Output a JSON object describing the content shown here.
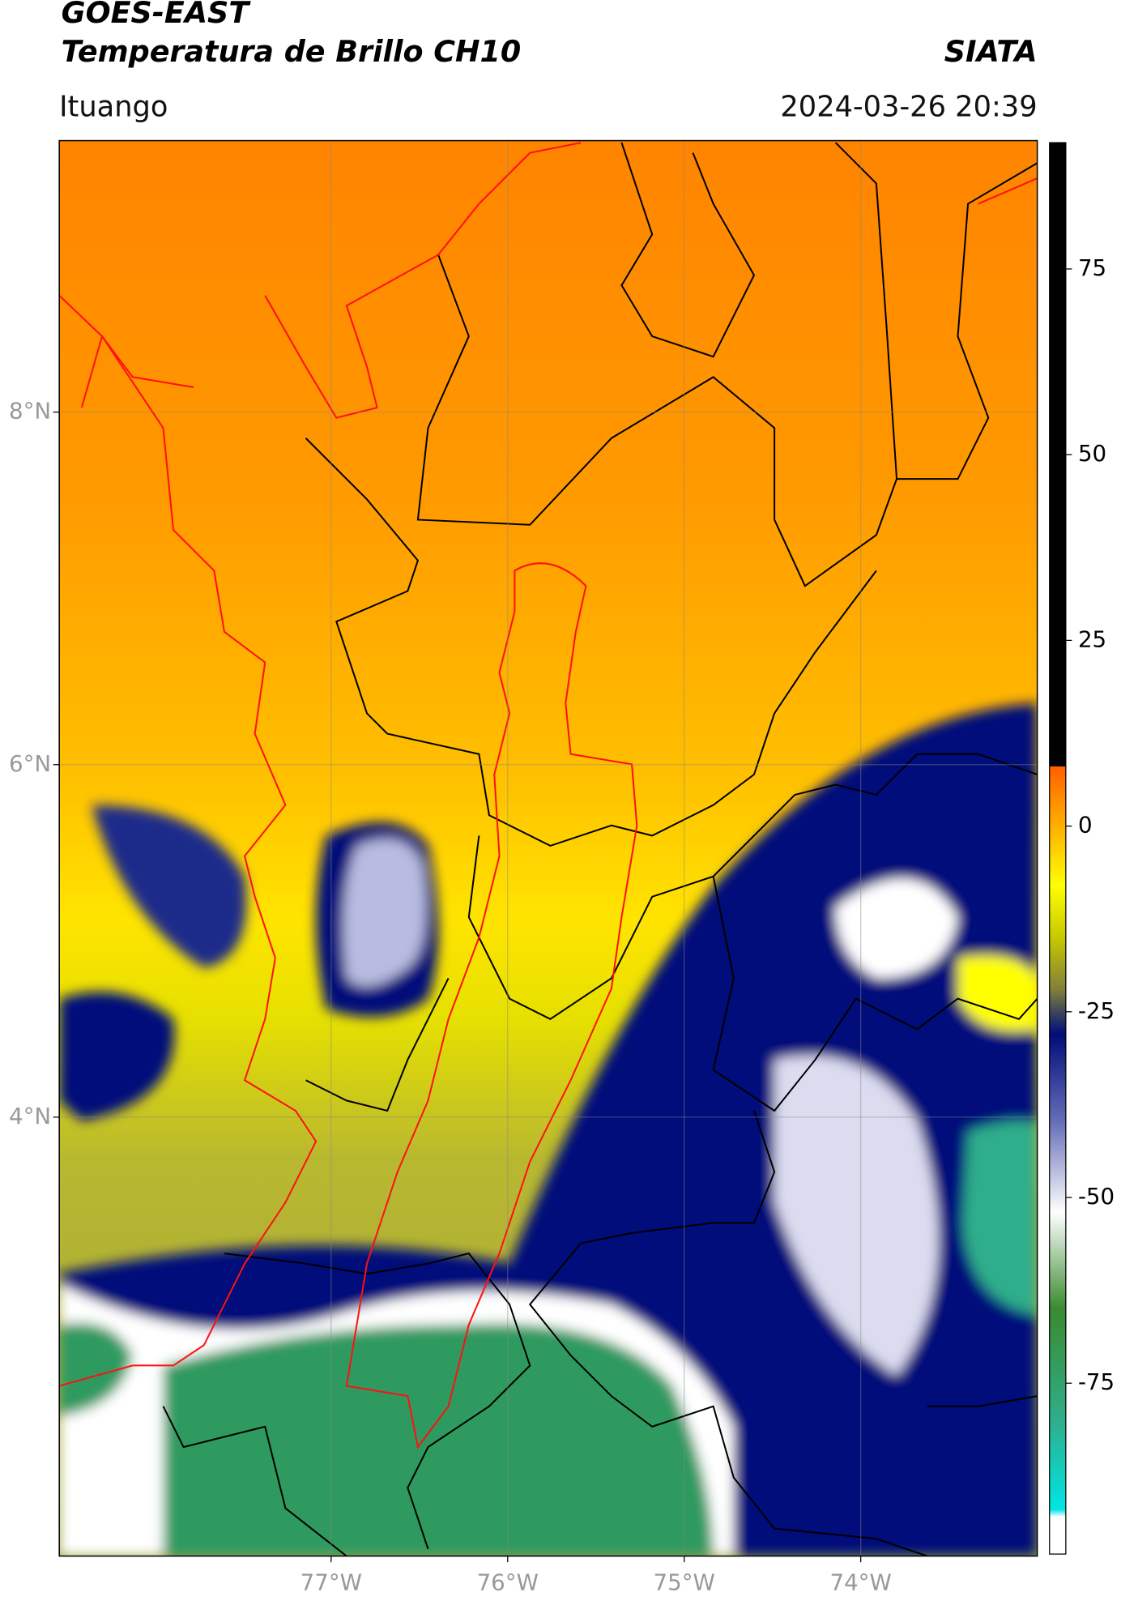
{
  "header": {
    "title": "GOES-EAST",
    "subtitle": "Temperatura de Brillo CH10",
    "brand": "SIATA",
    "location": "Ituango",
    "datetime": "2024-03-26 20:39"
  },
  "map": {
    "xlim": [
      -78.54,
      -73.0
    ],
    "ylim": [
      1.51,
      9.54
    ],
    "xticks": [
      {
        "value": -77,
        "label": "77°W"
      },
      {
        "value": -76,
        "label": "76°W"
      },
      {
        "value": -75,
        "label": "75°W"
      },
      {
        "value": -74,
        "label": "74°W"
      }
    ],
    "yticks": [
      {
        "value": 8,
        "label": "8°N"
      },
      {
        "value": 6,
        "label": "6°N"
      },
      {
        "value": 4,
        "label": "4°N"
      }
    ],
    "grid": true
  },
  "colorbar": {
    "lim": [
      -98,
      92
    ],
    "ticks": [
      75,
      50,
      25,
      0,
      -25,
      -50,
      -75
    ],
    "stops": [
      {
        "value": -98,
        "color": "#ffffff"
      },
      {
        "value": -93,
        "color": "#ffffff"
      },
      {
        "value": -92,
        "color": "#00e5e5"
      },
      {
        "value": -80,
        "color": "#2fae8a"
      },
      {
        "value": -65,
        "color": "#3a8a30"
      },
      {
        "value": -52,
        "color": "#ffffff"
      },
      {
        "value": -40,
        "color": "#6870b8"
      },
      {
        "value": -28,
        "color": "#000c7a"
      },
      {
        "value": -22,
        "color": "#80803a"
      },
      {
        "value": -15,
        "color": "#c8c800"
      },
      {
        "value": -8,
        "color": "#ffff00"
      },
      {
        "value": 4,
        "color": "#ff8800"
      },
      {
        "value": 8,
        "color": "#ff6000"
      },
      {
        "value": 8.01,
        "color": "#ff0000"
      },
      {
        "value": 8.02,
        "color": "#000000"
      },
      {
        "value": 92,
        "color": "#000000"
      }
    ]
  }
}
